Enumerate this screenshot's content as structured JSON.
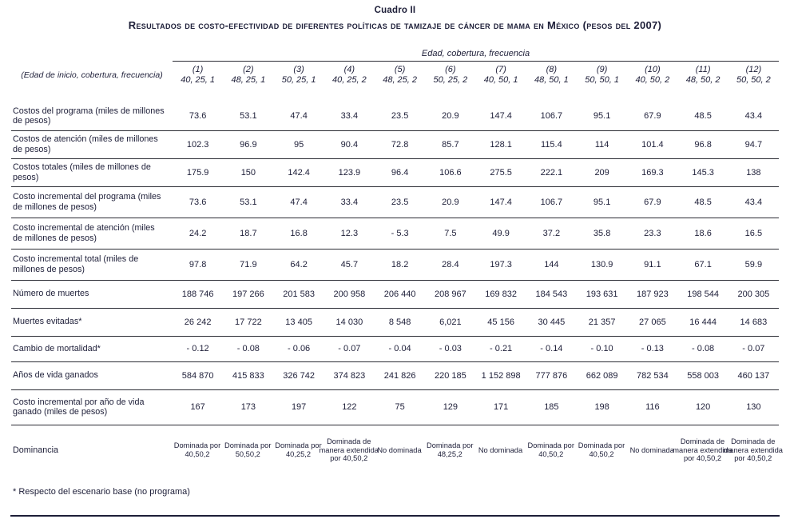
{
  "title": {
    "kicker": "Cuadro II",
    "main": "Resultados de costo-efectividad de diferentes políticas de tamizaje de cáncer de mama en México (pesos del 2007)"
  },
  "table": {
    "group_header": "Edad, cobertura, frecuencia",
    "row_header_label": "(Edad de inicio, cobertura, frecuencia)",
    "columns": [
      {
        "num": "(1)",
        "spec": "40, 25, 1"
      },
      {
        "num": "(2)",
        "spec": "48, 25, 1"
      },
      {
        "num": "(3)",
        "spec": "50, 25, 1"
      },
      {
        "num": "(4)",
        "spec": "40, 25, 2"
      },
      {
        "num": "(5)",
        "spec": "48, 25, 2"
      },
      {
        "num": "(6)",
        "spec": "50, 25, 2"
      },
      {
        "num": "(7)",
        "spec": "40, 50, 1"
      },
      {
        "num": "(8)",
        "spec": "48, 50, 1"
      },
      {
        "num": "(9)",
        "spec": "50, 50, 1"
      },
      {
        "num": "(10)",
        "spec": "40, 50, 2"
      },
      {
        "num": "(11)",
        "spec": "48, 50, 2"
      },
      {
        "num": "(12)",
        "spec": "50, 50, 2"
      }
    ],
    "rows": [
      {
        "label": "Costos del programa (miles de millones de pesos)",
        "values": [
          "73.6",
          "53.1",
          "47.4",
          "33.4",
          "23.5",
          "20.9",
          "147.4",
          "106.7",
          "95.1",
          "67.9",
          "48.5",
          "43.4"
        ]
      },
      {
        "label": "Costos de atención (miles de millones de pesos)",
        "values": [
          "102.3",
          "96.9",
          "95",
          "90.4",
          "72.8",
          "85.7",
          "128.1",
          "115.4",
          "114",
          "101.4",
          "96.8",
          "94.7"
        ]
      },
      {
        "label": "Costos totales (miles de millones de pesos)",
        "values": [
          "175.9",
          "150",
          "142.4",
          "123.9",
          "96.4",
          "106.6",
          "275.5",
          "222.1",
          "209",
          "169.3",
          "145.3",
          "138"
        ]
      },
      {
        "label": "Costo incremental del programa (miles de millones de pesos)",
        "values": [
          "73.6",
          "53.1",
          "47.4",
          "33.4",
          "23.5",
          "20.9",
          "147.4",
          "106.7",
          "95.1",
          "67.9",
          "48.5",
          "43.4"
        ]
      },
      {
        "label": "Costo incremental de atención (miles de millones de pesos)",
        "values": [
          "24.2",
          "18.7",
          "16.8",
          "12.3",
          "- 5.3",
          "7.5",
          "49.9",
          "37.2",
          "35.8",
          "23.3",
          "18.6",
          "16.5"
        ]
      },
      {
        "label": "Costo incremental total (miles de millones de pesos)",
        "values": [
          "97.8",
          "71.9",
          "64.2",
          "45.7",
          "18.2",
          "28.4",
          "197.3",
          "144",
          "130.9",
          "91.1",
          "67.1",
          "59.9"
        ]
      },
      {
        "label": "Número de muertes",
        "values": [
          "188 746",
          "197 266",
          "201 583",
          "200 958",
          "206 440",
          "208 967",
          "169 832",
          "184 543",
          "193 631",
          "187 923",
          "198 544",
          "200 305"
        ]
      },
      {
        "label": "Muertes evitadas*",
        "values": [
          "26 242",
          "17 722",
          "13 405",
          "14 030",
          "8 548",
          "6,021",
          "45 156",
          "30 445",
          "21 357",
          "27 065",
          "16 444",
          "14 683"
        ]
      },
      {
        "label": "Cambio de mortalidad*",
        "values": [
          "- 0.12",
          "- 0.08",
          "- 0.06",
          "- 0.07",
          "- 0.04",
          "- 0.03",
          "- 0.21",
          "- 0.14",
          "- 0.10",
          "- 0.13",
          "- 0.08",
          "- 0.07"
        ]
      },
      {
        "label": "Años de vida ganados",
        "values": [
          "584 870",
          "415 833",
          "326 742",
          "374 823",
          "241 826",
          "220 185",
          "1 152 898",
          "777 876",
          "662 089",
          "782 534",
          "558 003",
          "460 137"
        ]
      },
      {
        "label": "Costo incremental por año de vida ganado (miles de pesos)",
        "values": [
          "167",
          "173",
          "197",
          "122",
          "75",
          "129",
          "171",
          "185",
          "198",
          "116",
          "120",
          "130"
        ]
      },
      {
        "label": "Dominancia",
        "values": [
          "Dominada por 40,50,2",
          "Dominada por 50,50,2",
          "Dominada por 40,25,2",
          "Dominada de manera extendida por 40,50,2",
          "No dominada",
          "Dominada por 48,25,2",
          "No dominada",
          "Dominada por 40,50,2",
          "Dominada por 40,50,2",
          "No dominada",
          "Dominada de manera extendida por 40,50,2",
          "Dominada de manera extendida por 40,50,2"
        ]
      }
    ]
  },
  "footnote": "* Respecto del escenario base (no programa)"
}
